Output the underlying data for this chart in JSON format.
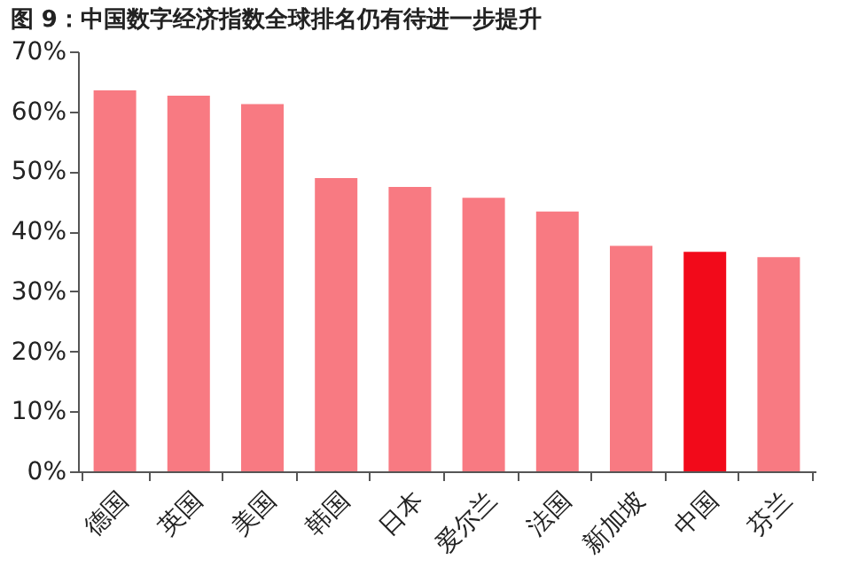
{
  "chart_data": {
    "type": "bar",
    "title": "图 9：中国数字经济指数全球排名仍有待进一步提升",
    "categories": [
      "德国",
      "英国",
      "美国",
      "韩国",
      "日本",
      "爱尔兰",
      "法国",
      "新加坡",
      "中国",
      "芬兰"
    ],
    "values": [
      63.5,
      62.6,
      61.2,
      48.9,
      47.4,
      45.6,
      43.3,
      37.6,
      36.6,
      35.7
    ],
    "colors": [
      "#f87a82",
      "#f87a82",
      "#f87a82",
      "#f87a82",
      "#f87a82",
      "#f87a82",
      "#f87a82",
      "#f87a82",
      "#f20a1a",
      "#f87a82"
    ],
    "ylim": [
      0,
      70
    ],
    "yticks": [
      {
        "value": 0,
        "label": "0%"
      },
      {
        "value": 10,
        "label": "10%"
      },
      {
        "value": 20,
        "label": "20%"
      },
      {
        "value": 30,
        "label": "30%"
      },
      {
        "value": 40,
        "label": "40%"
      },
      {
        "value": 50,
        "label": "50%"
      },
      {
        "value": 60,
        "label": "60%"
      },
      {
        "value": 70,
        "label": "70%"
      }
    ],
    "grid": false
  }
}
